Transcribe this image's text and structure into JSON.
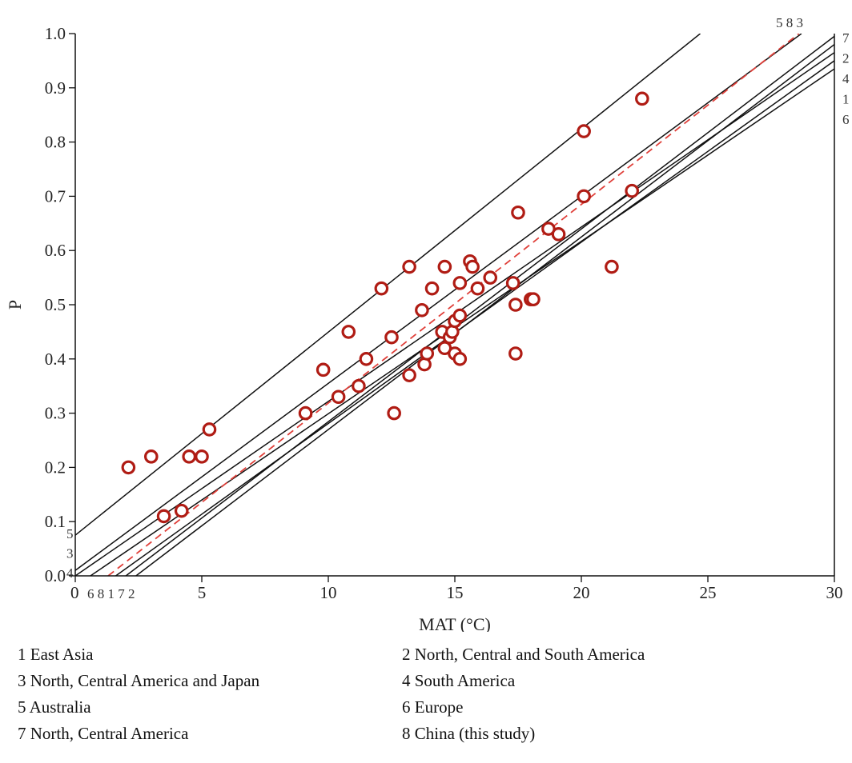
{
  "chart_data": {
    "type": "scatter",
    "xlabel": "MAT (°C)",
    "ylabel": "P",
    "xlim": [
      0,
      30
    ],
    "ylim": [
      0.0,
      1.0
    ],
    "x_ticks": [
      "0",
      "5",
      "10",
      "15",
      "20",
      "25",
      "30"
    ],
    "y_ticks": [
      "0.0",
      "0.1",
      "0.2",
      "0.3",
      "0.4",
      "0.5",
      "0.6",
      "0.7",
      "0.8",
      "0.9",
      "1.0"
    ],
    "grid": false,
    "points": [
      {
        "x": 2.1,
        "y": 0.2
      },
      {
        "x": 3.0,
        "y": 0.22
      },
      {
        "x": 3.5,
        "y": 0.11
      },
      {
        "x": 4.2,
        "y": 0.12
      },
      {
        "x": 4.5,
        "y": 0.22
      },
      {
        "x": 5.0,
        "y": 0.22
      },
      {
        "x": 5.3,
        "y": 0.27
      },
      {
        "x": 9.1,
        "y": 0.3
      },
      {
        "x": 9.8,
        "y": 0.38
      },
      {
        "x": 10.4,
        "y": 0.33
      },
      {
        "x": 10.8,
        "y": 0.45
      },
      {
        "x": 11.2,
        "y": 0.35
      },
      {
        "x": 11.5,
        "y": 0.4
      },
      {
        "x": 12.1,
        "y": 0.53
      },
      {
        "x": 12.5,
        "y": 0.44
      },
      {
        "x": 12.6,
        "y": 0.3
      },
      {
        "x": 13.2,
        "y": 0.37
      },
      {
        "x": 13.2,
        "y": 0.57
      },
      {
        "x": 13.7,
        "y": 0.49
      },
      {
        "x": 13.8,
        "y": 0.39
      },
      {
        "x": 13.9,
        "y": 0.41
      },
      {
        "x": 14.1,
        "y": 0.53
      },
      {
        "x": 14.5,
        "y": 0.45
      },
      {
        "x": 14.6,
        "y": 0.42
      },
      {
        "x": 14.6,
        "y": 0.57
      },
      {
        "x": 14.8,
        "y": 0.44
      },
      {
        "x": 14.9,
        "y": 0.45
      },
      {
        "x": 15.0,
        "y": 0.41
      },
      {
        "x": 15.0,
        "y": 0.47
      },
      {
        "x": 15.2,
        "y": 0.4
      },
      {
        "x": 15.2,
        "y": 0.48
      },
      {
        "x": 15.2,
        "y": 0.54
      },
      {
        "x": 15.6,
        "y": 0.58
      },
      {
        "x": 15.7,
        "y": 0.57
      },
      {
        "x": 15.9,
        "y": 0.53
      },
      {
        "x": 16.4,
        "y": 0.55
      },
      {
        "x": 17.3,
        "y": 0.54
      },
      {
        "x": 17.4,
        "y": 0.41
      },
      {
        "x": 17.4,
        "y": 0.5
      },
      {
        "x": 17.5,
        "y": 0.67
      },
      {
        "x": 18.0,
        "y": 0.51
      },
      {
        "x": 18.1,
        "y": 0.51
      },
      {
        "x": 18.7,
        "y": 0.64
      },
      {
        "x": 19.1,
        "y": 0.63
      },
      {
        "x": 20.1,
        "y": 0.7
      },
      {
        "x": 20.1,
        "y": 0.82
      },
      {
        "x": 21.2,
        "y": 0.57
      },
      {
        "x": 22.0,
        "y": 0.71
      },
      {
        "x": 22.4,
        "y": 0.88
      }
    ],
    "lines": [
      {
        "label": "5",
        "x1": 0,
        "y1": 0.075,
        "x2": 24.7,
        "y2": 1.0,
        "color": "#111111",
        "dashed": false
      },
      {
        "label": "3",
        "x1": 0,
        "y1": 0.01,
        "x2": 28.7,
        "y2": 1.0,
        "color": "#111111",
        "dashed": false
      },
      {
        "label": "4",
        "x1": 0,
        "y1": 0.0,
        "x2": 30,
        "y2": 0.965,
        "color": "#111111",
        "dashed": false
      },
      {
        "label": "6",
        "x1": 0.6,
        "y1": 0.0,
        "x2": 30,
        "y2": 0.935,
        "color": "#111111",
        "dashed": false
      },
      {
        "label": "1",
        "x1": 1.6,
        "y1": 0.0,
        "x2": 30,
        "y2": 0.95,
        "color": "#111111",
        "dashed": false
      },
      {
        "label": "7",
        "x1": 2.0,
        "y1": 0.0,
        "x2": 30,
        "y2": 0.995,
        "color": "#111111",
        "dashed": false
      },
      {
        "label": "2",
        "x1": 2.4,
        "y1": 0.0,
        "x2": 30,
        "y2": 0.98,
        "color": "#111111",
        "dashed": false
      },
      {
        "label": "8",
        "x1": 1.3,
        "y1": 0.0,
        "x2": 28.6,
        "y2": 1.0,
        "color": "#e0403a",
        "dashed": true
      }
    ],
    "line_labels": {
      "top": "5 8 3",
      "right": [
        "7",
        "2",
        "4",
        "1",
        "6"
      ],
      "left": [
        "5",
        "3",
        "4"
      ],
      "bottom": "6 8 1 7 2"
    },
    "legend": [
      "1 East Asia",
      "2 North, Central and South America",
      "3 North, Central America and Japan",
      "4 South America",
      "5 Australia",
      "6 Europe",
      "7 North, Central America",
      "8 China (this study)"
    ],
    "marker_color": "#b01c14",
    "marker_fill": "#ffffff"
  }
}
